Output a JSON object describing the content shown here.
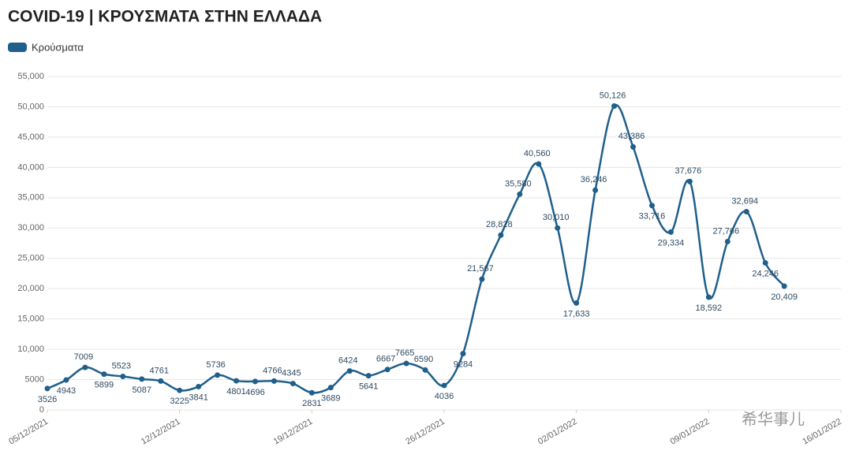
{
  "chart_data": {
    "type": "line",
    "title": "COVID-19 | ΚΡΟΥΣΜΑΤΑ ΣΤΗΝ ΕΛΛΑΔΑ",
    "legend": "top-left",
    "grid": true,
    "watermark": "希华事儿",
    "x": [
      "05/12/2021",
      "06/12/2021",
      "07/12/2021",
      "08/12/2021",
      "09/12/2021",
      "10/12/2021",
      "11/12/2021",
      "12/12/2021",
      "13/12/2021",
      "14/12/2021",
      "15/12/2021",
      "16/12/2021",
      "17/12/2021",
      "18/12/2021",
      "19/12/2021",
      "20/12/2021",
      "21/12/2021",
      "22/12/2021",
      "23/12/2021",
      "24/12/2021",
      "25/12/2021",
      "26/12/2021",
      "27/12/2021",
      "28/12/2021",
      "29/12/2021",
      "30/12/2021",
      "31/12/2021",
      "01/01/2022",
      "02/01/2022",
      "03/01/2022",
      "04/01/2022",
      "05/01/2022",
      "06/01/2022",
      "07/01/2022",
      "08/01/2022",
      "09/01/2022",
      "10/01/2022",
      "11/01/2022",
      "12/01/2022",
      "13/01/2022"
    ],
    "xlim": [
      "05/12/2021",
      "16/01/2022"
    ],
    "xticks": [
      "05/12/2021",
      "12/12/2021",
      "19/12/2021",
      "26/12/2021",
      "02/01/2022",
      "09/01/2022",
      "16/01/2022"
    ],
    "ylim": [
      0,
      55000
    ],
    "yticks": [
      0,
      {
        "value": 5000,
        "label": "5000"
      },
      {
        "value": 10000,
        "label": "10,000"
      },
      {
        "value": 15000,
        "label": "15,000"
      },
      {
        "value": 20000,
        "label": "20,000"
      },
      {
        "value": 25000,
        "label": "25,000"
      },
      {
        "value": 30000,
        "label": "30,000"
      },
      {
        "value": 35000,
        "label": "35,000"
      },
      {
        "value": 40000,
        "label": "40,000"
      },
      {
        "value": 45000,
        "label": "45,000"
      },
      {
        "value": 50000,
        "label": "50,000"
      },
      {
        "value": 55000,
        "label": "55,000"
      }
    ],
    "series": [
      {
        "name": "Κρούσματα",
        "color": "#1f5f8b",
        "values": [
          3526,
          4943,
          7009,
          5899,
          5523,
          5087,
          4761,
          3225,
          3841,
          5736,
          4801,
          4696,
          4766,
          4345,
          2831,
          3689,
          6424,
          5641,
          6667,
          7665,
          6590,
          4036,
          9284,
          21567,
          28828,
          35580,
          40560,
          30010,
          17633,
          36246,
          50126,
          43386,
          33716,
          29334,
          37676,
          18592,
          27766,
          32694,
          24246,
          20409
        ],
        "value_labels": [
          "3526",
          "4943",
          "7009",
          "5899",
          "5523",
          "5087",
          "4761",
          "3225",
          "3841",
          "5736",
          "4801",
          "4696",
          "4766",
          "4345",
          "2831",
          "3689",
          "6424",
          "5641",
          "6667",
          "7665",
          "6590",
          "4036",
          "9284",
          "21,567",
          "28,828",
          "35,580",
          "40,560",
          "30,010",
          "17,633",
          "36,246",
          "50,126",
          "43,386",
          "33,716",
          "29,334",
          "37,676",
          "18,592",
          "27,766",
          "32,694",
          "24,246",
          "20,409"
        ]
      }
    ]
  }
}
